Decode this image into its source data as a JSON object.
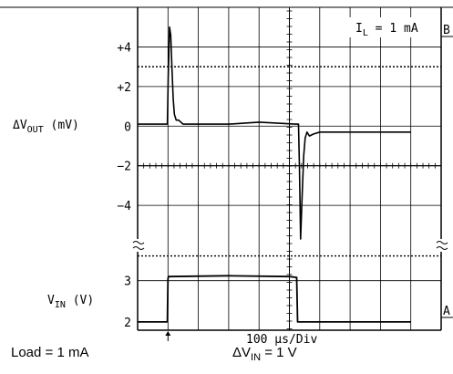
{
  "chart_data": {
    "type": "line",
    "title": "",
    "annotation": {
      "text": "I",
      "sub": "L",
      "rest": " = 1 mA"
    },
    "upper_panel": {
      "ylabel": {
        "main": "ΔV",
        "sub": "OUT",
        "rest": " (mV)"
      },
      "y_ticks": [
        "+4",
        "+2",
        "0",
        "−2",
        "−4"
      ],
      "y_tick_values": [
        4,
        2,
        0,
        -2,
        -4
      ],
      "ylim": [
        -5.7,
        6
      ],
      "reference_line": 3,
      "series": [
        {
          "name": "ΔV_OUT",
          "x": [
            0.0,
            0.98,
            1.01,
            1.05,
            1.09,
            1.13,
            1.17,
            1.21,
            1.27,
            1.35,
            1.5,
            2.0,
            3.0,
            4.0,
            5.2,
            5.3,
            5.33,
            5.37,
            5.42,
            5.47,
            5.52,
            5.58,
            5.66,
            5.8,
            6.0,
            7.0,
            8.0,
            9.0
          ],
          "y": [
            0.1,
            0.1,
            2.5,
            5.0,
            4.6,
            3.0,
            1.4,
            0.6,
            0.3,
            0.3,
            0.1,
            0.1,
            0.1,
            0.2,
            0.1,
            0.1,
            -2.0,
            -5.7,
            -3.5,
            -1.5,
            -0.6,
            -0.3,
            -0.5,
            -0.4,
            -0.3,
            -0.3,
            -0.3,
            -0.3
          ]
        }
      ]
    },
    "lower_panel": {
      "ylabel": {
        "main": "V",
        "sub": "IN",
        "rest": " (V)"
      },
      "y_ticks": [
        "3",
        "2"
      ],
      "y_tick_values": [
        3,
        2
      ],
      "ylim": [
        1.8,
        3.7
      ],
      "reference_line": 3.6,
      "series": [
        {
          "name": "V_IN",
          "x": [
            0.0,
            0.98,
            1.0,
            1.02,
            3.0,
            5.0,
            5.24,
            5.27,
            5.3,
            6.0,
            9.0
          ],
          "y": [
            2.0,
            2.0,
            3.05,
            3.1,
            3.12,
            3.1,
            3.08,
            2.0,
            2.0,
            2.0,
            2.0
          ]
        }
      ]
    },
    "x_divisions": 10,
    "xlabel": "100 μs/Div",
    "trigger_marker_x": 1.0,
    "channel_markers": [
      "B",
      "A"
    ]
  },
  "footer": {
    "load": "Load = 1 mA",
    "delta_main": "ΔV",
    "delta_sub": "IN",
    "delta_rest": " = 1 V"
  }
}
